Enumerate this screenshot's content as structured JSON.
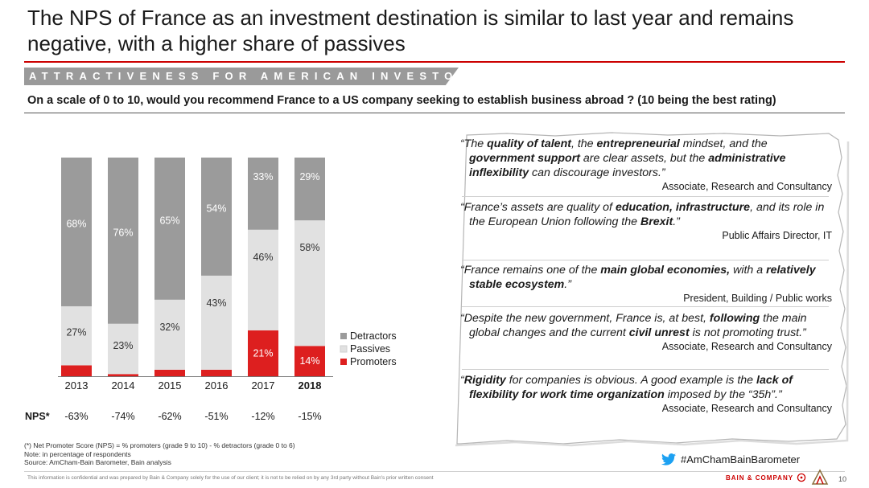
{
  "title": "The NPS of France as an investment destination is similar to last year and remains negative, with a higher share of passives",
  "banner": "ATTRACTIVENESS FOR AMERICAN INVESTORS",
  "question": "On a scale of 0 to 10, would you recommend France to a US company seeking to establish business abroad ? (10 being the best rating)",
  "chart_data": {
    "type": "bar",
    "stacked": true,
    "normalized": true,
    "categories": [
      "2013",
      "2014",
      "2015",
      "2016",
      "2017",
      "2018"
    ],
    "highlight_category": "2018",
    "series": [
      {
        "name": "Promoters",
        "color": "#dd1f1f",
        "values": [
          5,
          1,
          3,
          3,
          21,
          14
        ],
        "labels": [
          "5%",
          "1%",
          "3%",
          "3%",
          "21%",
          "14%"
        ]
      },
      {
        "name": "Passives",
        "color": "#e1e1e1",
        "values": [
          27,
          23,
          32,
          43,
          46,
          58
        ],
        "labels": [
          "27%",
          "23%",
          "32%",
          "43%",
          "46%",
          "58%"
        ]
      },
      {
        "name": "Detractors",
        "color": "#9b9b9b",
        "values": [
          68,
          76,
          65,
          54,
          33,
          29
        ],
        "labels": [
          "68%",
          "76%",
          "65%",
          "54%",
          "33%",
          "29%"
        ]
      }
    ],
    "legend_order": [
      "Detractors",
      "Passives",
      "Promoters"
    ],
    "legend_position": "right",
    "nps_label": "NPS*",
    "nps": [
      "-63%",
      "-74%",
      "-62%",
      "-51%",
      "-12%",
      "-15%"
    ]
  },
  "quotes": [
    {
      "parts": [
        {
          "t": "“The ",
          "b": false
        },
        {
          "t": "quality of talent",
          "b": true
        },
        {
          "t": ", the ",
          "b": false
        },
        {
          "t": "entrepreneurial",
          "b": true
        },
        {
          "t": " mindset, and the ",
          "b": false
        },
        {
          "t": "government support",
          "b": true
        },
        {
          "t": " are clear assets, but the ",
          "b": false
        },
        {
          "t": "administrative inflexibility",
          "b": true
        },
        {
          "t": " can discourage investors.”",
          "b": false
        }
      ],
      "author": "Associate, Research and Consultancy"
    },
    {
      "parts": [
        {
          "t": "“France’s assets are quality of ",
          "b": false
        },
        {
          "t": "education, infrastructure",
          "b": true
        },
        {
          "t": ", and its role in the European Union following the ",
          "b": false
        },
        {
          "t": "Brexit",
          "b": true
        },
        {
          "t": ".”",
          "b": false
        }
      ],
      "author": "Public Affairs Director, IT"
    },
    {
      "parts": [
        {
          "t": "“France remains one of the ",
          "b": false
        },
        {
          "t": "main global economies,",
          "b": true
        },
        {
          "t": " with a ",
          "b": false
        },
        {
          "t": "relatively stable ecosystem",
          "b": true
        },
        {
          "t": ".”",
          "b": false
        }
      ],
      "author": "President, Building / Public works"
    },
    {
      "parts": [
        {
          "t": "“Despite the new government, France is, at best, ",
          "b": false
        },
        {
          "t": "following",
          "b": true
        },
        {
          "t": " the main global changes and the current ",
          "b": false
        },
        {
          "t": "civil unrest",
          "b": true
        },
        {
          "t": " is not promoting trust.”",
          "b": false
        }
      ],
      "author": "Associate, Research and Consultancy"
    },
    {
      "parts": [
        {
          "t": "“",
          "b": false
        },
        {
          "t": "Rigidity",
          "b": true
        },
        {
          "t": " for companies is obvious. A good example is the ",
          "b": false
        },
        {
          "t": "lack of flexibility for work time organization",
          "b": true
        },
        {
          "t": " imposed by the “35h”.”",
          "b": false
        }
      ],
      "author": "Associate, Research and Consultancy"
    }
  ],
  "footnotes": [
    "(*) Net Promoter Score (NPS) = % promoters (grade 9 to 10) - % detractors (grade 0 to 6)",
    "Note: in percentage of respondents",
    "Source: AmCham-Bain Barometer, Bain analysis"
  ],
  "hashtag": "#AmChamBainBarometer",
  "disclaimer": "This information is confidential and was prepared by Bain & Company solely for the use of our client; it is not to be relied on by any 3rd party without Bain's prior written consent",
  "brand": "BAIN & COMPANY",
  "page_number": "10",
  "icons": {
    "twitter": "twitter-bird-icon",
    "brand_mark": "bain-logo-icon",
    "amcham": "amcham-logo-icon"
  }
}
